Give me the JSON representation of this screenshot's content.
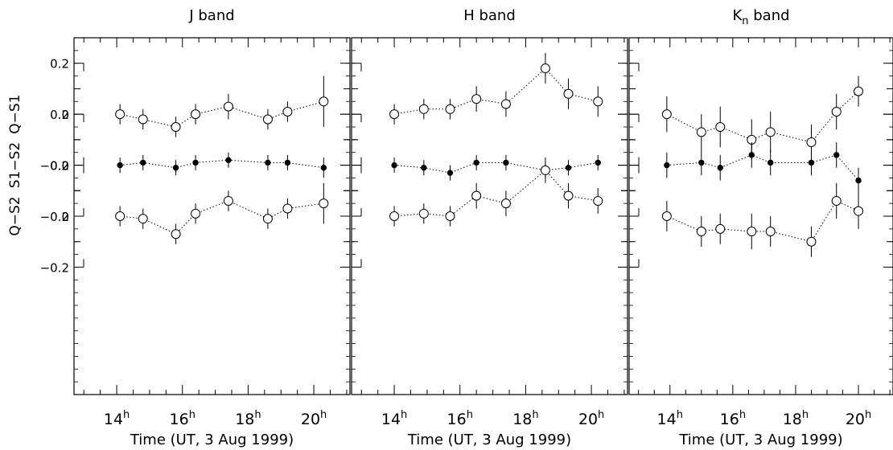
{
  "chart_data": {
    "type": "scatter",
    "x_unit": "hours UT",
    "xlim": [
      12.7,
      21.1
    ],
    "x_ticks": [
      14,
      16,
      18,
      20
    ],
    "x_tick_label_superscript": "h",
    "xlabel": "Time (UT, 3 Aug 1999)",
    "ylim": [
      -0.9,
      0.5
    ],
    "strips": [
      {
        "id": "QS1",
        "ylabel": "Q−S1",
        "offset": 0.2,
        "tick_labels": [
          [
            "0.2",
            0.2
          ],
          [
            "0",
            0
          ],
          [
            "−0.2",
            -0.2
          ]
        ],
        "marker": "open",
        "errors": true
      },
      {
        "id": "S1S2",
        "ylabel": "S1−S2",
        "offset": 0.0,
        "tick_labels": [
          [
            "0.2",
            0.2
          ],
          [
            "0",
            0
          ],
          [
            "−0.2",
            -0.2
          ]
        ],
        "marker": "filled",
        "errors": true
      },
      {
        "id": "QS2",
        "ylabel": "Q−S2",
        "offset": -0.2,
        "tick_labels": [
          [
            "0.2",
            0.2
          ],
          [
            "0",
            0
          ],
          [
            "−0.2",
            -0.2
          ]
        ],
        "marker": "open",
        "errors": true
      }
    ],
    "panels": [
      {
        "title_main": "J band",
        "title_sub": "",
        "x": [
          14.1,
          14.8,
          15.8,
          16.4,
          17.4,
          18.6,
          19.2,
          20.3
        ],
        "series": [
          {
            "strip": "QS1",
            "values": [
              0.0,
              -0.02,
              -0.05,
              0.0,
              0.03,
              -0.02,
              0.01,
              0.05
            ],
            "errors": [
              0.04,
              0.04,
              0.04,
              0.04,
              0.05,
              0.04,
              0.04,
              0.1
            ]
          },
          {
            "strip": "S1S2",
            "values": [
              0.0,
              0.01,
              -0.01,
              0.01,
              0.02,
              0.01,
              0.01,
              -0.01
            ],
            "errors": [
              0.03,
              0.03,
              0.03,
              0.03,
              0.03,
              0.03,
              0.03,
              0.04
            ]
          },
          {
            "strip": "QS2",
            "values": [
              0.0,
              -0.01,
              -0.07,
              0.01,
              0.06,
              -0.01,
              0.03,
              0.05
            ],
            "errors": [
              0.04,
              0.04,
              0.04,
              0.04,
              0.04,
              0.04,
              0.04,
              0.08
            ]
          }
        ]
      },
      {
        "title_main": "H band",
        "title_sub": "",
        "x": [
          14.0,
          14.9,
          15.7,
          16.5,
          17.4,
          18.6,
          19.3,
          20.2
        ],
        "series": [
          {
            "strip": "QS1",
            "values": [
              0.0,
              0.02,
              0.02,
              0.06,
              0.04,
              0.18,
              0.08,
              0.05
            ],
            "errors": [
              0.04,
              0.04,
              0.04,
              0.05,
              0.05,
              0.06,
              0.06,
              0.06
            ]
          },
          {
            "strip": "S1S2",
            "values": [
              0.0,
              -0.01,
              -0.03,
              0.01,
              0.01,
              -0.02,
              -0.01,
              0.01
            ],
            "errors": [
              0.03,
              0.03,
              0.03,
              0.03,
              0.03,
              0.03,
              0.03,
              0.03
            ]
          },
          {
            "strip": "QS2",
            "values": [
              0.0,
              0.01,
              0.0,
              0.08,
              0.05,
              0.18,
              0.08,
              0.06
            ],
            "errors": [
              0.04,
              0.04,
              0.04,
              0.05,
              0.05,
              0.05,
              0.05,
              0.05
            ]
          }
        ]
      },
      {
        "title_main": "K",
        "title_sub": "n",
        "title_rest": " band",
        "x": [
          13.9,
          15.0,
          15.6,
          16.6,
          17.2,
          18.5,
          19.3,
          20.0
        ],
        "series": [
          {
            "strip": "QS1",
            "values": [
              0.0,
              -0.07,
              -0.05,
              -0.1,
              -0.07,
              -0.11,
              0.01,
              0.09
            ],
            "errors": [
              0.07,
              0.07,
              0.08,
              0.08,
              0.08,
              0.07,
              0.07,
              0.06
            ]
          },
          {
            "strip": "S1S2",
            "values": [
              0.0,
              0.01,
              -0.01,
              0.04,
              0.01,
              0.01,
              0.04,
              -0.06
            ],
            "errors": [
              0.05,
              0.05,
              0.05,
              0.05,
              0.05,
              0.05,
              0.05,
              0.05
            ]
          },
          {
            "strip": "QS2",
            "values": [
              0.0,
              -0.06,
              -0.05,
              -0.06,
              -0.06,
              -0.1,
              0.06,
              0.02
            ],
            "errors": [
              0.06,
              0.06,
              0.06,
              0.07,
              0.06,
              0.06,
              0.07,
              0.07
            ]
          }
        ]
      }
    ]
  }
}
